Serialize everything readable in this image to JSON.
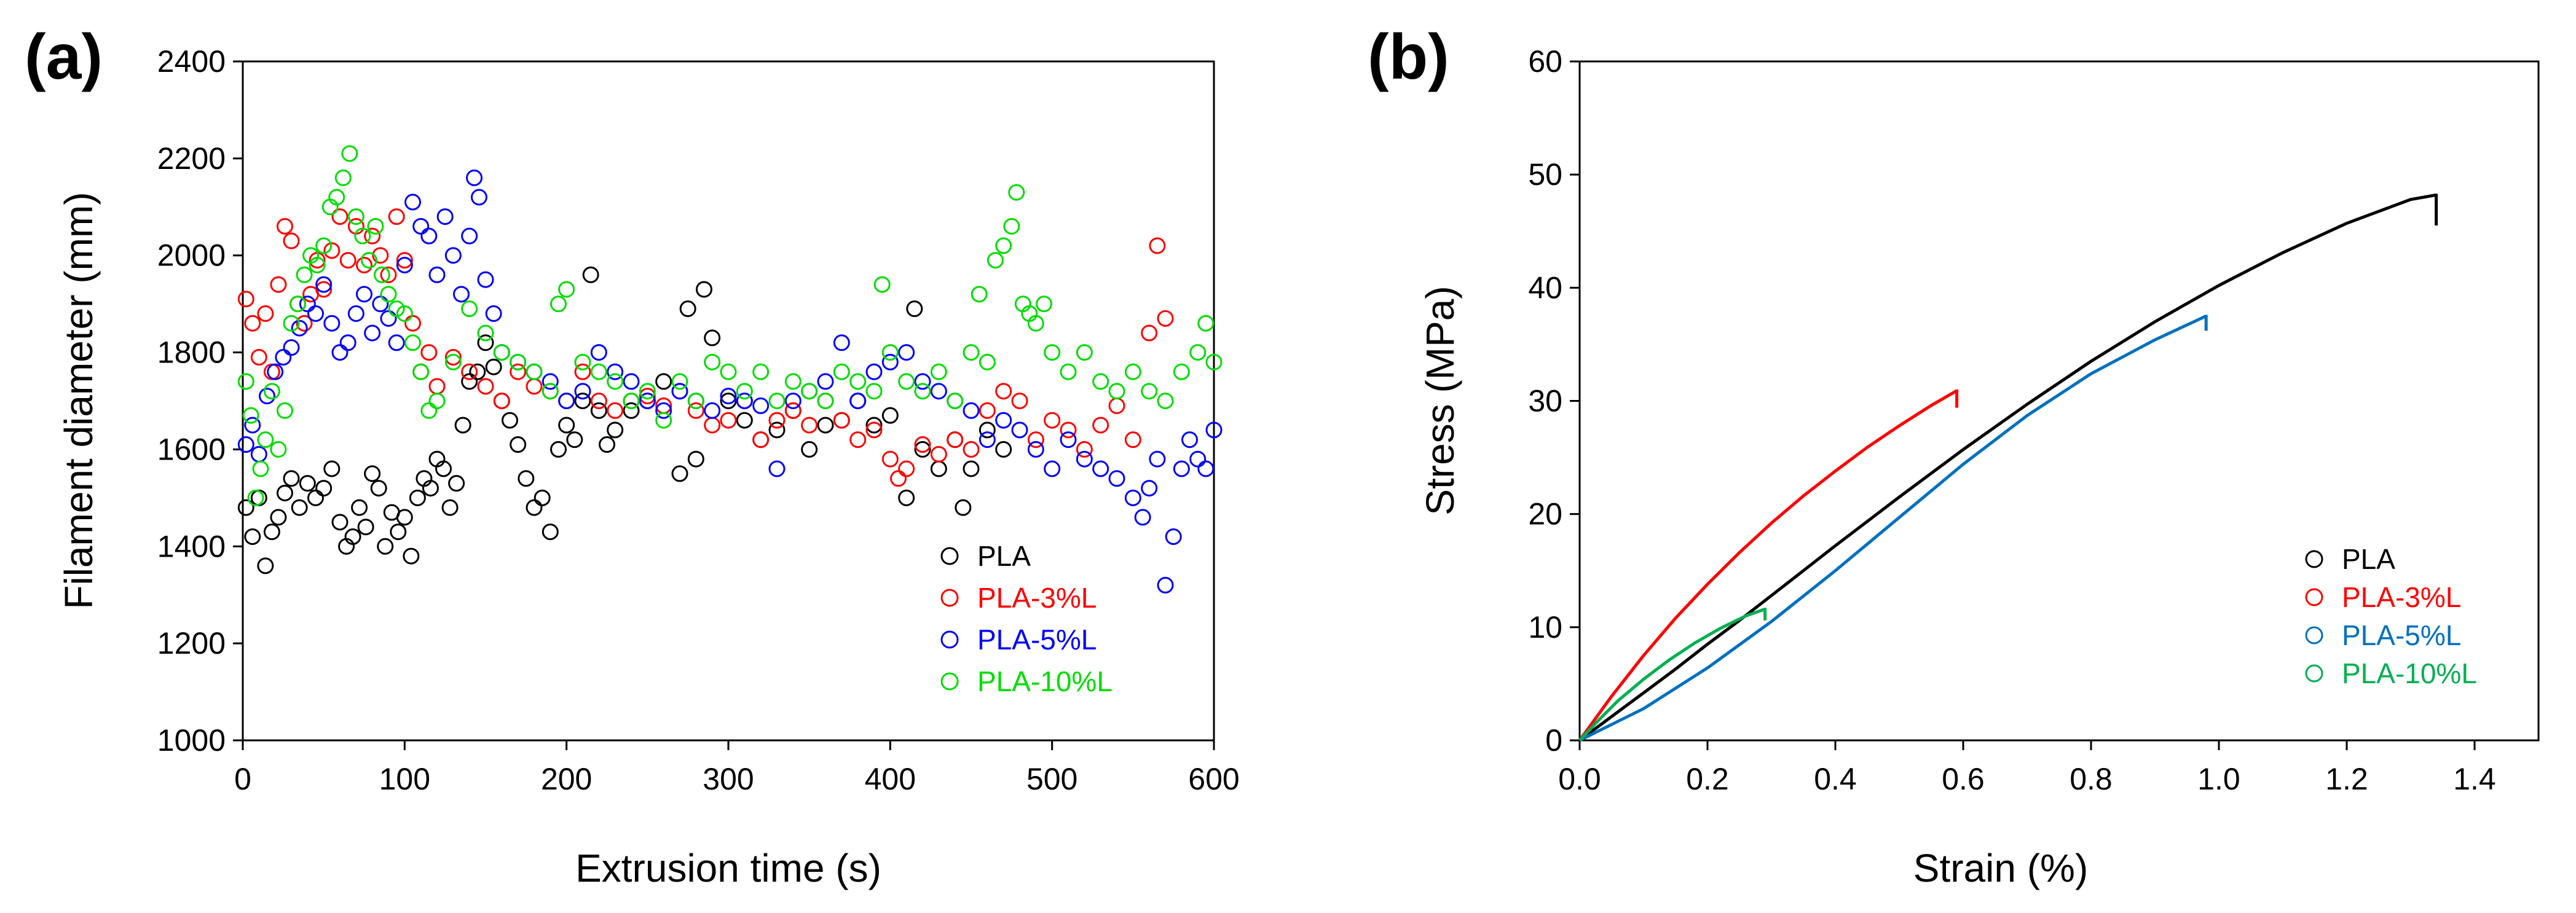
{
  "chart_data": [
    {
      "panel_label": "(a)",
      "type": "scatter",
      "title": "",
      "xlabel": "Extrusion time (s)",
      "ylabel": "Filament diameter (mm)",
      "xlim": [
        0,
        600
      ],
      "ylim": [
        1000,
        2400
      ],
      "xticks": [
        0,
        100,
        200,
        300,
        400,
        500,
        600
      ],
      "yticks": [
        1000,
        1200,
        1400,
        1600,
        1800,
        2000,
        2200,
        2400
      ],
      "xtick_labels": [
        "0",
        "100",
        "200",
        "300",
        "400",
        "500",
        "600"
      ],
      "ytick_labels": [
        "1000",
        "1200",
        "1400",
        "1600",
        "1800",
        "2000",
        "2200",
        "2400"
      ],
      "grid": false,
      "legend_position": "bottom-right",
      "series": [
        {
          "name": "PLA",
          "color": "#000000",
          "x": [
            2,
            6,
            10,
            14,
            18,
            22,
            26,
            30,
            35,
            40,
            45,
            50,
            55,
            60,
            64,
            68,
            72,
            76,
            80,
            84,
            88,
            92,
            96,
            100,
            104,
            108,
            112,
            116,
            120,
            124,
            128,
            132,
            136,
            140,
            145,
            150,
            155,
            160,
            165,
            170,
            175,
            180,
            185,
            190,
            195,
            200,
            205,
            210,
            215,
            220,
            225,
            230,
            240,
            250,
            260,
            270,
            275,
            280,
            285,
            290,
            300,
            310,
            320,
            330,
            340,
            350,
            360,
            370,
            380,
            390,
            400,
            410,
            415,
            420,
            430,
            440,
            445,
            450,
            460,
            470
          ],
          "y": [
            1480,
            1420,
            1500,
            1360,
            1430,
            1460,
            1510,
            1540,
            1480,
            1530,
            1500,
            1520,
            1560,
            1450,
            1400,
            1420,
            1480,
            1440,
            1550,
            1520,
            1400,
            1470,
            1430,
            1460,
            1380,
            1500,
            1540,
            1520,
            1580,
            1560,
            1480,
            1530,
            1650,
            1740,
            1760,
            1820,
            1770,
            1700,
            1660,
            1610,
            1540,
            1480,
            1500,
            1430,
            1600,
            1650,
            1620,
            1700,
            1960,
            1680,
            1610,
            1640,
            1680,
            1700,
            1740,
            1550,
            1890,
            1580,
            1930,
            1830,
            1700,
            1660,
            1620,
            1640,
            1680,
            1600,
            1650,
            1660,
            1700,
            1650,
            1670,
            1500,
            1890,
            1600,
            1560,
            1620,
            1480,
            1560,
            1640,
            1600
          ]
        },
        {
          "name": "PLA-3%L",
          "color": "#ff0000",
          "x": [
            2,
            6,
            10,
            14,
            18,
            22,
            26,
            30,
            34,
            38,
            42,
            46,
            50,
            55,
            60,
            65,
            70,
            75,
            80,
            85,
            90,
            95,
            100,
            105,
            110,
            115,
            120,
            130,
            140,
            150,
            160,
            170,
            180,
            190,
            200,
            210,
            220,
            230,
            240,
            250,
            260,
            270,
            280,
            290,
            300,
            310,
            320,
            330,
            340,
            350,
            360,
            370,
            380,
            390,
            400,
            405,
            410,
            420,
            430,
            440,
            450,
            460,
            470,
            480,
            490,
            500,
            510,
            520,
            530,
            540,
            550,
            560,
            565,
            570
          ],
          "y": [
            1910,
            1860,
            1790,
            1880,
            1760,
            1940,
            2060,
            2030,
            1900,
            1860,
            1920,
            1990,
            1930,
            2010,
            2080,
            1990,
            2060,
            1980,
            2040,
            2000,
            1960,
            2080,
            1990,
            1860,
            1760,
            1800,
            1730,
            1790,
            1760,
            1730,
            1700,
            1760,
            1730,
            1720,
            1700,
            1760,
            1700,
            1680,
            1700,
            1710,
            1690,
            1720,
            1680,
            1650,
            1660,
            1700,
            1620,
            1660,
            1680,
            1650,
            1700,
            1660,
            1620,
            1640,
            1580,
            1540,
            1560,
            1610,
            1590,
            1620,
            1600,
            1680,
            1720,
            1700,
            1620,
            1660,
            1640,
            1600,
            1650,
            1690,
            1620,
            1840,
            2020,
            1870
          ]
        },
        {
          "name": "PLA-5%L",
          "color": "#0000ff",
          "x": [
            2,
            6,
            10,
            15,
            20,
            25,
            30,
            35,
            40,
            45,
            50,
            55,
            60,
            65,
            70,
            75,
            80,
            85,
            90,
            95,
            100,
            105,
            110,
            115,
            120,
            125,
            130,
            135,
            140,
            143,
            146,
            150,
            155,
            160,
            170,
            180,
            190,
            200,
            210,
            220,
            230,
            240,
            250,
            260,
            270,
            280,
            290,
            300,
            310,
            320,
            330,
            340,
            350,
            360,
            370,
            380,
            390,
            400,
            410,
            420,
            430,
            440,
            450,
            460,
            470,
            480,
            490,
            500,
            510,
            520,
            530,
            540,
            550,
            556,
            560,
            565,
            570,
            575,
            580,
            585,
            590,
            595,
            600
          ],
          "y": [
            1610,
            1650,
            1590,
            1710,
            1760,
            1790,
            1810,
            1850,
            1900,
            1880,
            1940,
            1860,
            1800,
            1820,
            1880,
            1920,
            1840,
            1900,
            1870,
            1820,
            1980,
            2110,
            2060,
            2040,
            1960,
            2080,
            2000,
            1920,
            2040,
            2160,
            2120,
            1950,
            1880,
            1800,
            1780,
            1760,
            1740,
            1700,
            1720,
            1800,
            1760,
            1740,
            1700,
            1680,
            1720,
            1700,
            1680,
            1710,
            1700,
            1690,
            1560,
            1700,
            1720,
            1740,
            1820,
            1700,
            1760,
            1780,
            1800,
            1740,
            1720,
            1700,
            1680,
            1620,
            1660,
            1640,
            1600,
            1560,
            1620,
            1580,
            1560,
            1540,
            1500,
            1460,
            1520,
            1580,
            1320,
            1420,
            1560,
            1620,
            1580,
            1560,
            1640
          ]
        },
        {
          "name": "PLA-10%L",
          "color": "#00dd00",
          "x": [
            2,
            5,
            8,
            11,
            14,
            18,
            22,
            26,
            30,
            34,
            38,
            42,
            46,
            50,
            54,
            58,
            62,
            66,
            70,
            74,
            78,
            82,
            86,
            90,
            95,
            100,
            105,
            110,
            115,
            120,
            130,
            140,
            150,
            160,
            170,
            180,
            190,
            195,
            200,
            210,
            220,
            230,
            240,
            250,
            260,
            270,
            280,
            290,
            300,
            310,
            320,
            330,
            340,
            350,
            360,
            370,
            380,
            390,
            395,
            400,
            410,
            420,
            430,
            440,
            450,
            455,
            460,
            465,
            470,
            475,
            478,
            482,
            486,
            490,
            495,
            500,
            510,
            520,
            530,
            540,
            550,
            560,
            570,
            580,
            590,
            595,
            600
          ],
          "y": [
            1740,
            1670,
            1500,
            1560,
            1620,
            1720,
            1600,
            1680,
            1860,
            1900,
            1960,
            2000,
            1980,
            2020,
            2100,
            2120,
            2160,
            2210,
            2080,
            2040,
            1990,
            2060,
            1960,
            1920,
            1890,
            1880,
            1820,
            1760,
            1680,
            1700,
            1780,
            1890,
            1840,
            1800,
            1780,
            1760,
            1720,
            1900,
            1930,
            1780,
            1760,
            1740,
            1700,
            1720,
            1660,
            1740,
            1700,
            1780,
            1760,
            1720,
            1760,
            1700,
            1740,
            1720,
            1700,
            1760,
            1740,
            1720,
            1940,
            1800,
            1740,
            1720,
            1760,
            1700,
            1800,
            1920,
            1780,
            1990,
            2020,
            2060,
            2130,
            1900,
            1880,
            1860,
            1900,
            1800,
            1760,
            1800,
            1740,
            1720,
            1760,
            1720,
            1700,
            1760,
            1800,
            1860,
            1780
          ]
        }
      ]
    },
    {
      "panel_label": "(b)",
      "type": "line",
      "title": "",
      "xlabel": "Strain (%)",
      "ylabel": "Stress (MPa)",
      "xlim": [
        0,
        1.5
      ],
      "ylim": [
        0,
        60
      ],
      "xticks": [
        0,
        0.2,
        0.4,
        0.6,
        0.8,
        1.0,
        1.2,
        1.4
      ],
      "yticks": [
        0,
        10,
        20,
        30,
        40,
        50,
        60
      ],
      "xtick_labels": [
        "0.0",
        "0.2",
        "0.4",
        "0.6",
        "0.8",
        "1.0",
        "1.2",
        "1.4"
      ],
      "ytick_labels": [
        "0",
        "10",
        "20",
        "30",
        "40",
        "50",
        "60"
      ],
      "grid": false,
      "legend_position": "bottom-right",
      "series": [
        {
          "name": "PLA",
          "color": "#000000",
          "x": [
            0,
            0.05,
            0.1,
            0.15,
            0.2,
            0.25,
            0.3,
            0.35,
            0.4,
            0.5,
            0.6,
            0.7,
            0.8,
            0.9,
            1.0,
            1.1,
            1.2,
            1.3,
            1.34
          ],
          "y": [
            0,
            2.1,
            4.2,
            6.3,
            8.5,
            10.6,
            12.8,
            15.0,
            17.2,
            21.5,
            25.7,
            29.7,
            33.5,
            37.0,
            40.2,
            43.1,
            45.7,
            47.8,
            48.2
          ],
          "failure_drop_to": 45.5
        },
        {
          "name": "PLA-3%L",
          "color": "#ff0000",
          "x": [
            0,
            0.05,
            0.1,
            0.15,
            0.2,
            0.25,
            0.3,
            0.35,
            0.4,
            0.45,
            0.5,
            0.55,
            0.59
          ],
          "y": [
            0,
            3.9,
            7.5,
            10.8,
            13.8,
            16.6,
            19.2,
            21.6,
            23.8,
            25.9,
            27.8,
            29.6,
            30.9
          ],
          "failure_drop_to": 29.4
        },
        {
          "name": "PLA-5%L",
          "color": "#0070c0",
          "x": [
            0,
            0.1,
            0.2,
            0.3,
            0.4,
            0.5,
            0.6,
            0.7,
            0.8,
            0.9,
            0.98
          ],
          "y": [
            0,
            2.8,
            6.4,
            10.5,
            15.0,
            19.7,
            24.4,
            28.7,
            32.4,
            35.4,
            37.5
          ],
          "failure_drop_to": 36.2
        },
        {
          "name": "PLA-10%L",
          "color": "#00b050",
          "x": [
            0,
            0.03,
            0.06,
            0.1,
            0.14,
            0.18,
            0.22,
            0.26,
            0.29
          ],
          "y": [
            0,
            1.8,
            3.5,
            5.4,
            7.1,
            8.6,
            9.9,
            11.0,
            11.6
          ],
          "failure_drop_to": 10.6
        }
      ]
    }
  ]
}
